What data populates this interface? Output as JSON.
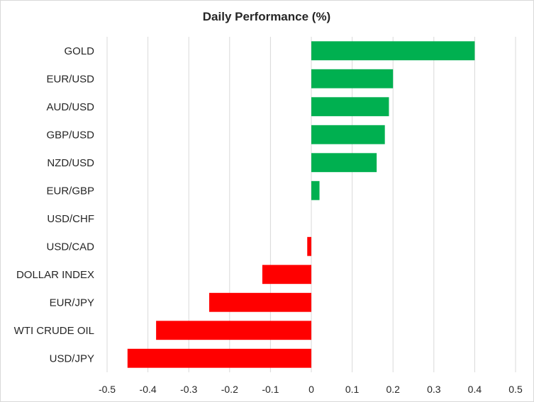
{
  "chart_data": {
    "type": "bar",
    "orientation": "horizontal",
    "title": "Daily Performance  (%)",
    "categories": [
      "GOLD",
      "EUR/USD",
      "AUD/USD",
      "GBP/USD",
      "NZD/USD",
      "EUR/GBP",
      "USD/CHF",
      "USD/CAD",
      "DOLLAR INDEX",
      "EUR/JPY",
      "WTI CRUDE OIL",
      "USD/JPY"
    ],
    "values": [
      0.4,
      0.2,
      0.19,
      0.18,
      0.16,
      0.02,
      0.0,
      -0.01,
      -0.12,
      -0.25,
      -0.38,
      -0.45
    ],
    "xlim": [
      -0.5,
      0.5
    ],
    "xticks": [
      -0.5,
      -0.4,
      -0.3,
      -0.2,
      -0.1,
      0,
      0.1,
      0.2,
      0.3,
      0.4,
      0.5
    ],
    "xtick_labels": [
      "-0.5",
      "-0.4",
      "-0.3",
      "-0.2",
      "-0.1",
      "0",
      "0.1",
      "0.2",
      "0.3",
      "0.4",
      "0.5"
    ],
    "xlabel": "",
    "ylabel": "",
    "grid": "vertical",
    "legend": "none",
    "colors": {
      "positive": "#00b050",
      "negative": "#ff0000",
      "grid": "#d9d9d9",
      "text": "#262626"
    }
  }
}
